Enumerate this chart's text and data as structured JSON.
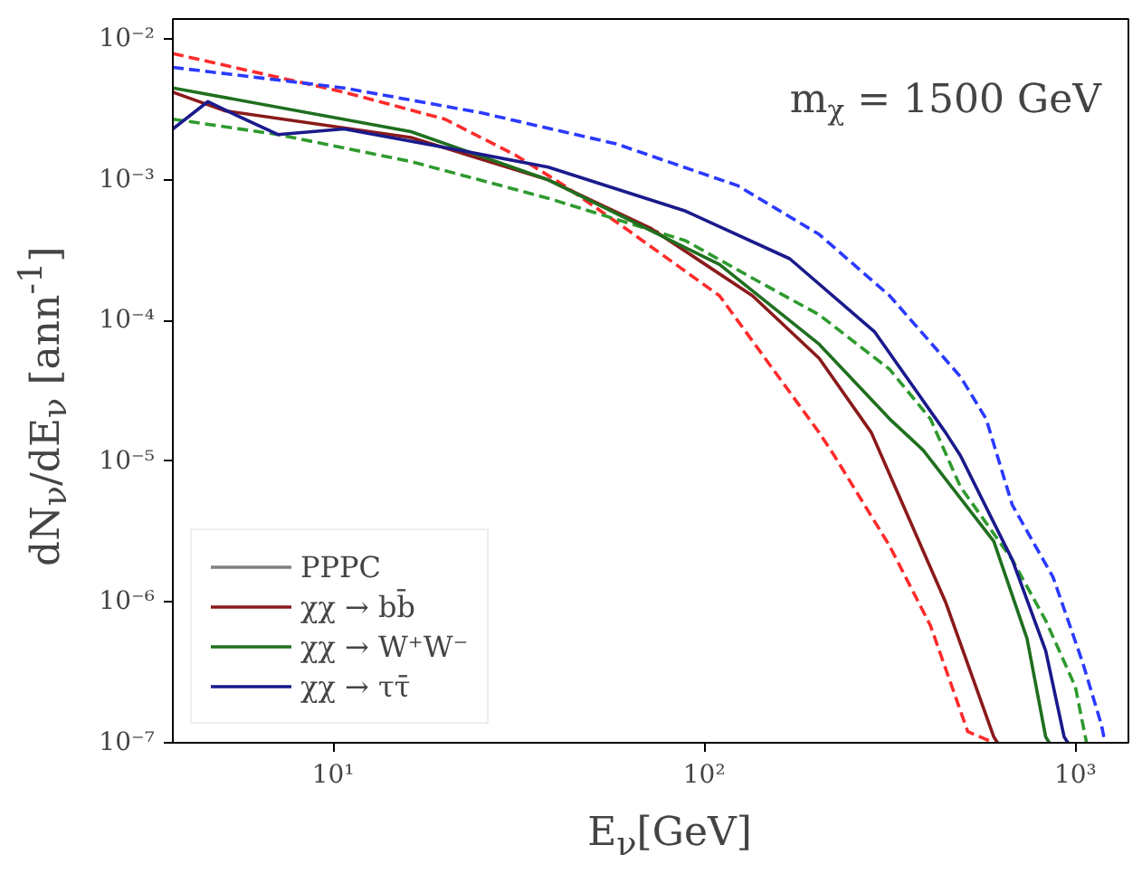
{
  "chart_data": {
    "type": "line",
    "xlabel": "E$_{ν}$[GeV]",
    "ylabel": "dN$_{ν}$/dE$_{ν}$ [ann$^{-1}$]",
    "log": "xy",
    "grid": false,
    "legend": "bottom left",
    "xlim": [
      3.7,
      1390
    ],
    "ylim": [
      1e-07,
      0.0139
    ],
    "xticks": [
      {
        "value": 10,
        "label": "10¹"
      },
      {
        "value": 100,
        "label": "10²"
      },
      {
        "value": 1000,
        "label": "10³"
      }
    ],
    "yticks": [
      {
        "value": 1e-07,
        "label": "10⁻⁷"
      },
      {
        "value": 1e-06,
        "label": "10⁻⁶"
      },
      {
        "value": 1e-05,
        "label": "10⁻⁵"
      },
      {
        "value": 0.0001,
        "label": "10⁻⁴"
      },
      {
        "value": 0.001,
        "label": "10⁻³"
      },
      {
        "value": 0.01,
        "label": "10⁻²"
      }
    ],
    "annotations": [
      "m$_{χ}$ = 1500 GeV",
      "PPPC"
    ],
    "series": [
      {
        "color": "#ff2a2a",
        "line_style": "dashed",
        "x": [
          3.7,
          10.7,
          20,
          31,
          42,
          63,
          110,
          204,
          224,
          316,
          407,
          513,
          603
        ],
        "values": [
          0.0079,
          0.0042,
          0.0027,
          0.0015,
          0.00091,
          0.00043,
          0.00015,
          1.6e-05,
          1.1e-05,
          2.5e-06,
          6.8e-07,
          1.2e-07,
          1e-07
        ]
      },
      {
        "color": "#2a3aff",
        "line_style": "dashed",
        "x": [
          3.7,
          10.7,
          25,
          58,
          123,
          204,
          316,
          490,
          575,
          676,
          871,
          1047,
          1175,
          1202
        ],
        "values": [
          0.0063,
          0.0045,
          0.003,
          0.0018,
          0.00091,
          0.00041,
          0.00015,
          4e-05,
          2e-05,
          4.9e-06,
          1.5e-06,
          3.7e-07,
          1.35e-07,
          1e-07
        ]
      },
      {
        "color": "#2e9a2e",
        "line_style": "dashed",
        "x": [
          3.7,
          7.1,
          16.2,
          38,
          89,
          135,
          204,
          316,
          407,
          490,
          676,
          832,
          1000,
          1072
        ],
        "values": [
          0.0027,
          0.0021,
          0.00135,
          0.00074,
          0.00037,
          0.0002,
          0.00011,
          4.5e-05,
          2e-05,
          6.6e-06,
          2e-06,
          7.4e-07,
          2.5e-07,
          1e-07
        ]
      },
      {
        "name": "χχ → bb̄",
        "color": "#8b1a1a",
        "line_style": "solid",
        "x": [
          3.7,
          5.1,
          16.2,
          38,
          72,
          135,
          204,
          282,
          447,
          603,
          617
        ],
        "values": [
          0.0042,
          0.0031,
          0.002,
          0.001,
          0.00045,
          0.00015,
          5.4e-05,
          1.6e-05,
          1e-06,
          1.1e-07,
          1e-07
        ]
      },
      {
        "name": "χχ → W⁺W⁻",
        "color": "#1f6f1f",
        "line_style": "solid",
        "x": [
          3.7,
          16.2,
          38,
          110,
          204,
          316,
          389,
          603,
          741,
          832,
          851
        ],
        "values": [
          0.0045,
          0.0022,
          0.001,
          0.00025,
          6.8e-05,
          2e-05,
          1.2e-05,
          2.7e-06,
          5.5e-07,
          1.1e-07,
          1e-07
        ]
      },
      {
        "name": "χχ → ττ̄",
        "color": "#1a1a8c",
        "line_style": "solid",
        "x": [
          3.7,
          4.6,
          5.6,
          7.1,
          10.7,
          20,
          38,
          89,
          170,
          288,
          447,
          490,
          676,
          832,
          933,
          955
        ],
        "values": [
          0.0023,
          0.0036,
          0.0028,
          0.0021,
          0.0023,
          0.0017,
          0.00123,
          0.0006,
          0.000275,
          8.3e-05,
          1.6e-05,
          1.1e-05,
          2e-06,
          4.5e-07,
          1.1e-07,
          1e-07
        ]
      }
    ]
  }
}
